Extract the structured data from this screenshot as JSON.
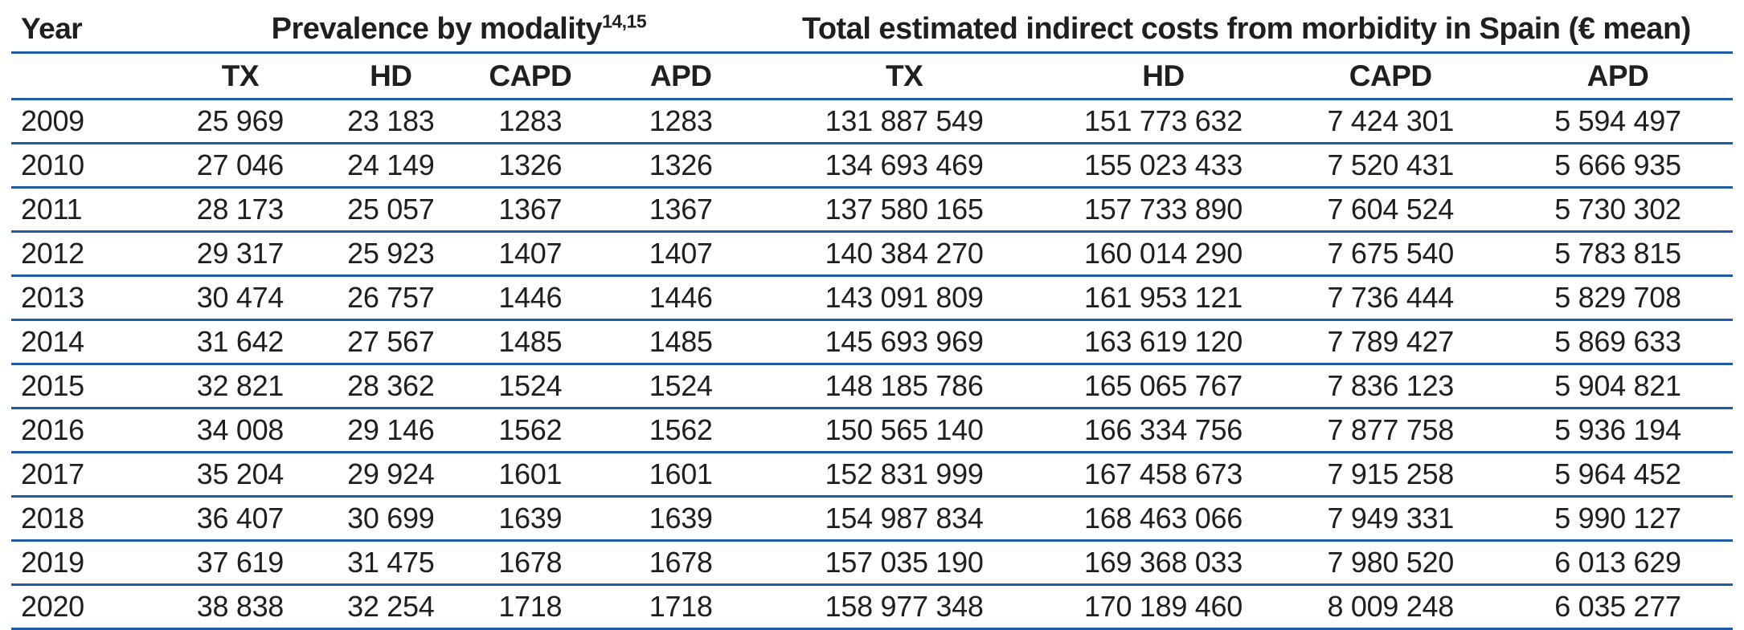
{
  "colors": {
    "rule_blue": "#1e5ba7",
    "text_black": "#1f1f1f"
  },
  "table": {
    "col_headers": {
      "year": "Year",
      "prevalence_group": {
        "title": "Prevalence by modality",
        "superscript": "14,15"
      },
      "costs_group": {
        "title": "Total estimated indirect costs from morbidity in Spain (€ mean)"
      },
      "sub": [
        "TX",
        "HD",
        "CAPD",
        "APD",
        "TX",
        "HD",
        "CAPD",
        "APD"
      ]
    },
    "rows": [
      {
        "year": "2009",
        "values": [
          "25 969",
          "23 183",
          "1283",
          "1283",
          "131 887 549",
          "151 773 632",
          "7 424 301",
          "5 594 497"
        ]
      },
      {
        "year": "2010",
        "values": [
          "27 046",
          "24 149",
          "1326",
          "1326",
          "134 693 469",
          "155 023 433",
          "7 520 431",
          "5 666 935"
        ]
      },
      {
        "year": "2011",
        "values": [
          "28 173",
          "25 057",
          "1367",
          "1367",
          "137 580 165",
          "157 733 890",
          "7 604 524",
          "5 730 302"
        ]
      },
      {
        "year": "2012",
        "values": [
          "29 317",
          "25 923",
          "1407",
          "1407",
          "140 384 270",
          "160 014 290",
          "7 675 540",
          "5 783 815"
        ]
      },
      {
        "year": "2013",
        "values": [
          "30 474",
          "26 757",
          "1446",
          "1446",
          "143 091 809",
          "161 953 121",
          "7 736 444",
          "5 829 708"
        ]
      },
      {
        "year": "2014",
        "values": [
          "31 642",
          "27 567",
          "1485",
          "1485",
          "145 693 969",
          "163 619 120",
          "7 789 427",
          "5 869 633"
        ]
      },
      {
        "year": "2015",
        "values": [
          "32 821",
          "28 362",
          "1524",
          "1524",
          "148 185 786",
          "165 065 767",
          "7 836 123",
          "5 904 821"
        ]
      },
      {
        "year": "2016",
        "values": [
          "34 008",
          "29 146",
          "1562",
          "1562",
          "150 565 140",
          "166 334 756",
          "7 877 758",
          "5 936 194"
        ]
      },
      {
        "year": "2017",
        "values": [
          "35 204",
          "29 924",
          "1601",
          "1601",
          "152 831 999",
          "167 458 673",
          "7 915 258",
          "5 964 452"
        ]
      },
      {
        "year": "2018",
        "values": [
          "36 407",
          "30 699",
          "1639",
          "1639",
          "154 987 834",
          "168 463 066",
          "7 949 331",
          "5 990 127"
        ]
      },
      {
        "year": "2019",
        "values": [
          "37 619",
          "31 475",
          "1678",
          "1678",
          "157 035 190",
          "169 368 033",
          "7 980 520",
          "6 013 629"
        ]
      },
      {
        "year": "2020",
        "values": [
          "38 838",
          "32 254",
          "1718",
          "1718",
          "158 977 348",
          "170 189 460",
          "8 009 248",
          "6 035 277"
        ]
      }
    ]
  }
}
